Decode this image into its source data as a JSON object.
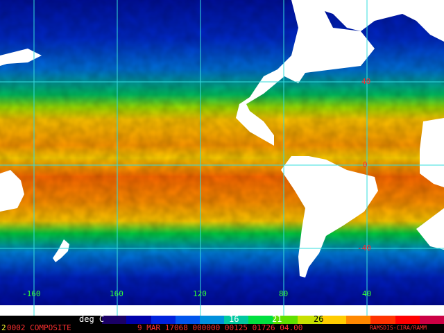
{
  "map": {
    "longitude_labels": [
      "-160",
      "160",
      "120",
      "80",
      "40"
    ],
    "latitude_labels": [
      "40",
      "0",
      "-40"
    ],
    "gridline_color": "#33dddd",
    "land_color": "#ffffff",
    "lon_label_color": "#33ff33",
    "lat_label_color": "#ff2a2a"
  },
  "colorbar": {
    "unit_label": "deg C",
    "tick_labels": [
      "16",
      "21",
      "26"
    ],
    "colors": [
      "#000000",
      "#1a0066",
      "#0000aa",
      "#0022dd",
      "#0055ee",
      "#0090dd",
      "#00c8a0",
      "#00e040",
      "#60e000",
      "#c8e000",
      "#ffcc00",
      "#ff8800",
      "#ff3300",
      "#ff0000",
      "#cc0044"
    ]
  },
  "footer": {
    "left_number": "2",
    "product": "0002 COMPOSITE",
    "date": "9 MAR 17068 000000 00125 01726 04.00",
    "credit": "RAMSDIS-CIRA/RAMM"
  }
}
